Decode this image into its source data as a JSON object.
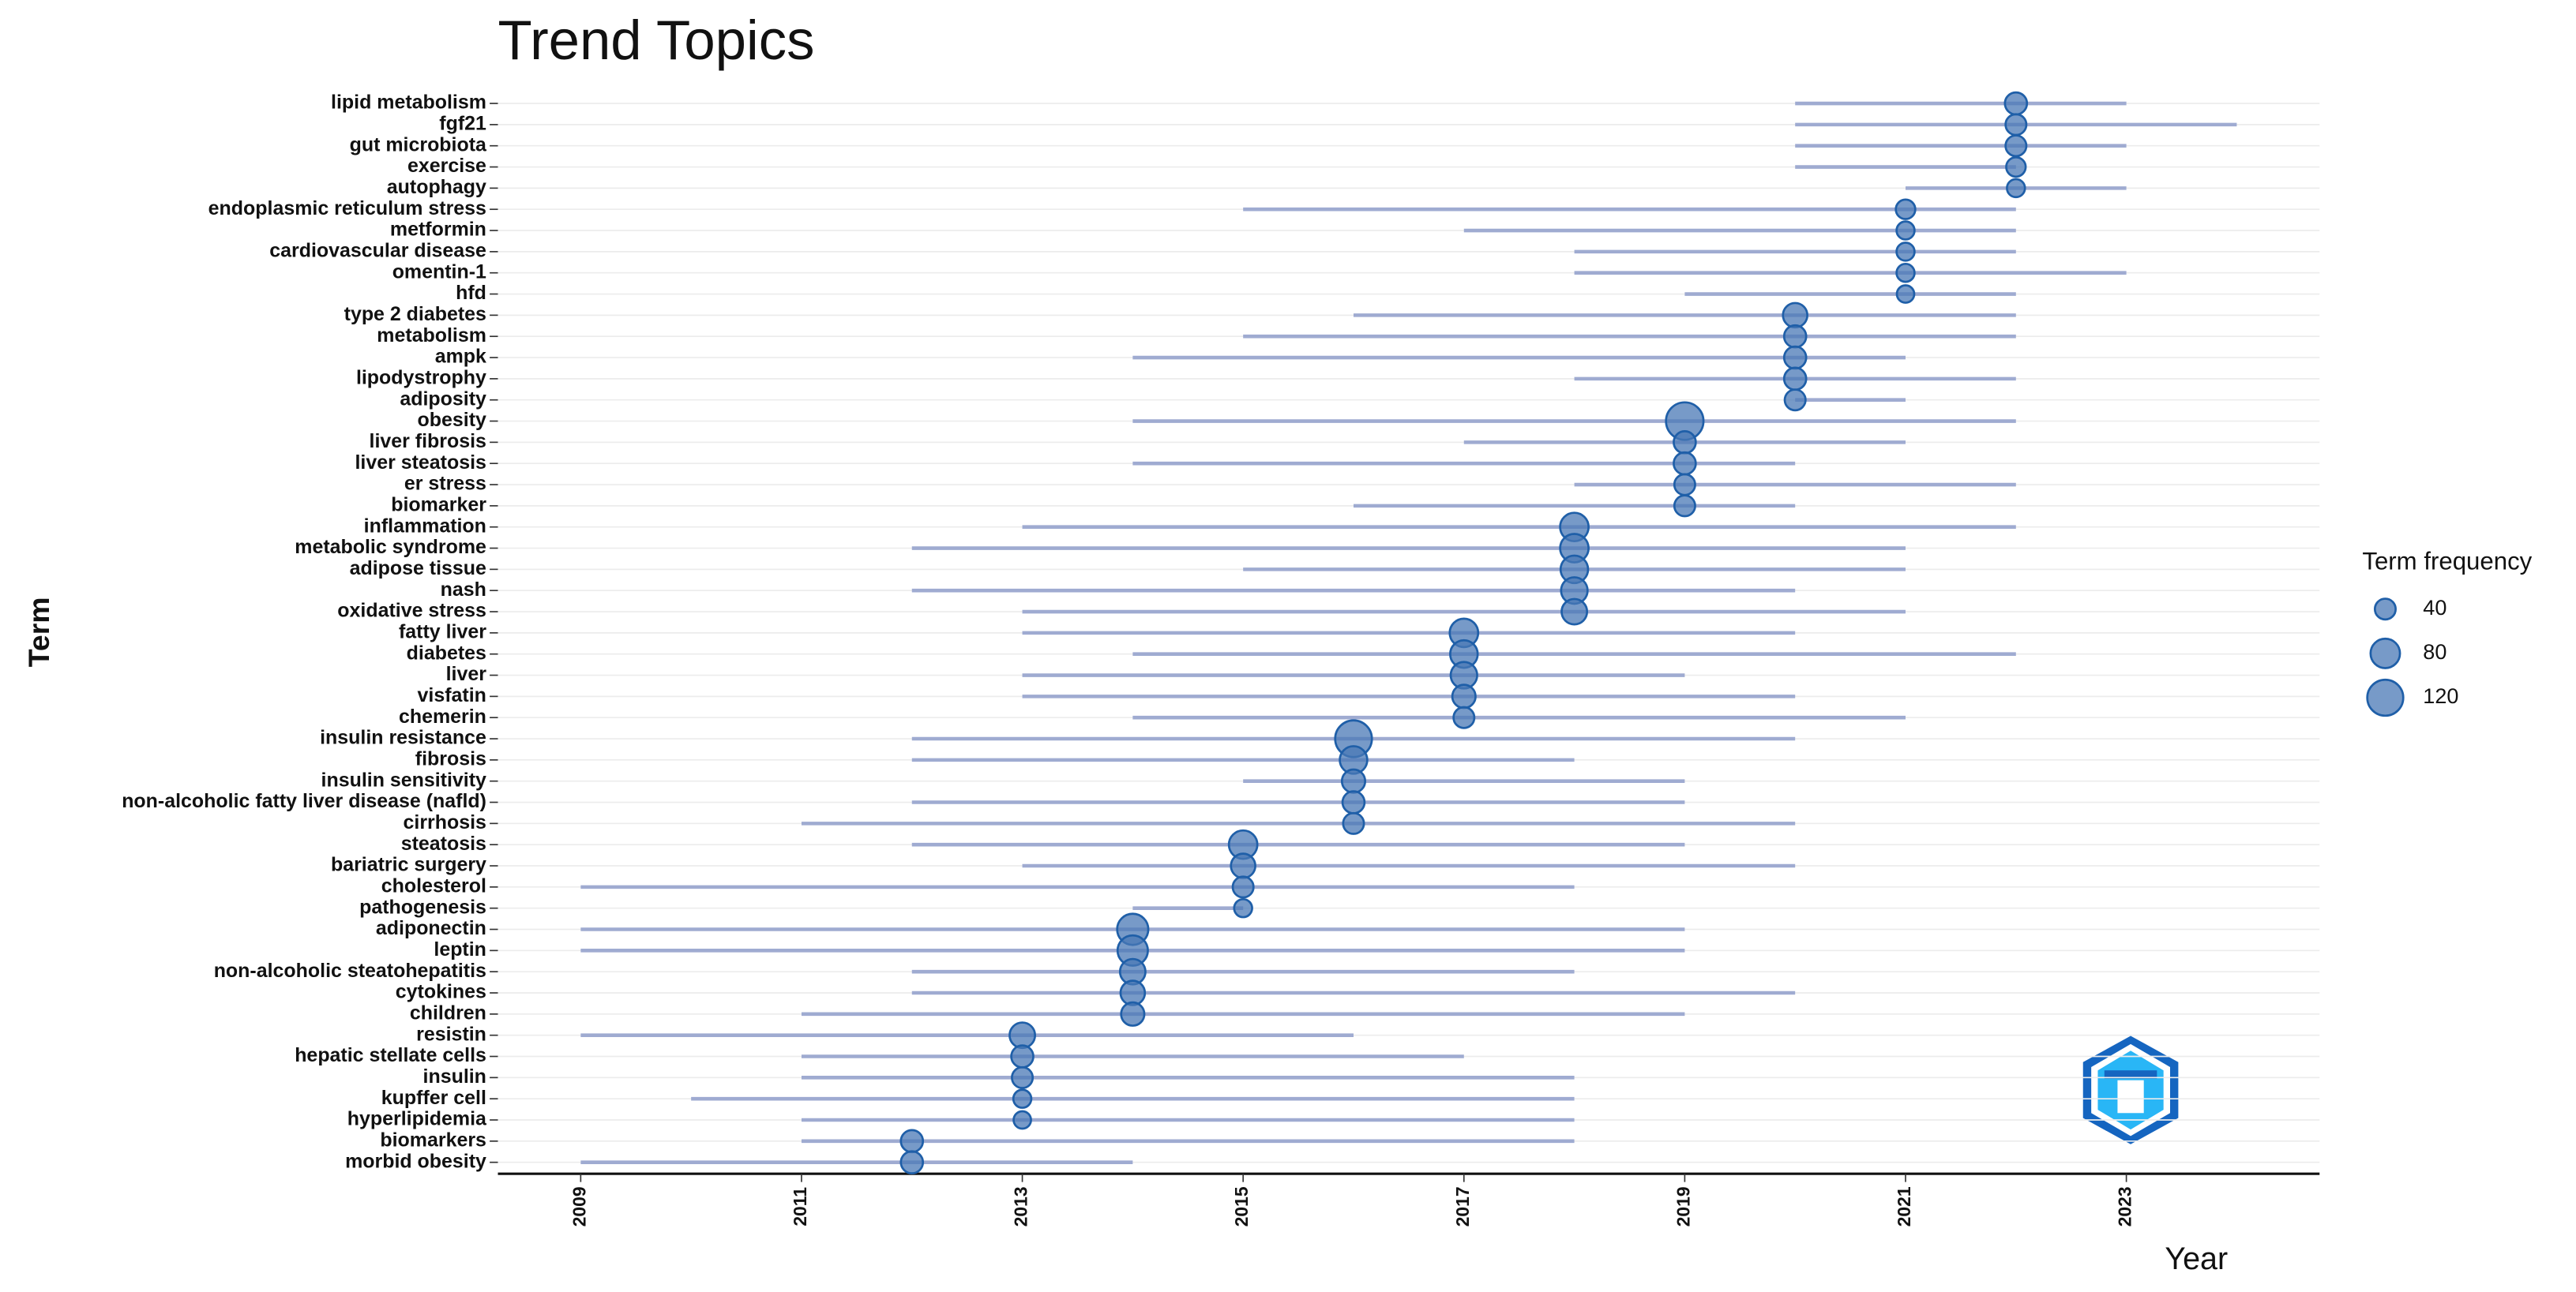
{
  "chart_data": {
    "type": "trend",
    "title": "Trend Topics",
    "x_label": "Year",
    "y_label": "Term",
    "categories": [
      "lipid metabolism",
      "fgf21",
      "gut microbiota",
      "exercise",
      "autophagy",
      "endoplasmic reticulum stress",
      "metformin",
      "cardiovascular disease",
      "omentin-1",
      "hfd",
      "type 2 diabetes",
      "metabolism",
      "ampk",
      "lipodystrophy",
      "adiposity",
      "obesity",
      "liver fibrosis",
      "liver steatosis",
      "er stress",
      "biomarker",
      "inflammation",
      "metabolic syndrome",
      "adipose tissue",
      "nash",
      "oxidative stress",
      "fatty liver",
      "diabetes",
      "liver",
      "visfatin",
      "chemerin",
      "insulin resistance",
      "fibrosis",
      "insulin sensitivity",
      "non-alcoholic fatty liver disease (nafld)",
      "cirrhosis",
      "steatosis",
      "bariatric surgery",
      "cholesterol",
      "pathogenesis",
      "adiponectin",
      "leptin",
      "non-alcoholic steatohepatitis",
      "cytokines",
      "children",
      "resistin",
      "hepatic stellate cells",
      "insulin",
      "kupffer cell",
      "hyperlipidemia",
      "biomarkers",
      "morbid obesity"
    ],
    "start": [
      2020,
      2020,
      2020,
      2020,
      2021,
      2015,
      2017,
      2018,
      2018,
      2019,
      2016,
      2015,
      2014,
      2018,
      2020,
      2014,
      2017,
      2014,
      2018,
      2016,
      2013,
      2012,
      2015,
      2012,
      2013,
      2013,
      2014,
      2013,
      2013,
      2014,
      2012,
      2012,
      2015,
      2012,
      2011,
      2012,
      2013,
      2009,
      2014,
      2009,
      2009,
      2012,
      2012,
      2011,
      2009,
      2011,
      2011,
      2010,
      2011,
      2011,
      2009
    ],
    "values": [
      2022,
      2022,
      2022,
      2022,
      2022,
      2021,
      2021,
      2021,
      2021,
      2021,
      2020,
      2020,
      2020,
      2020,
      2020,
      2019,
      2019,
      2019,
      2019,
      2019,
      2018,
      2018,
      2018,
      2018,
      2018,
      2017,
      2017,
      2017,
      2017,
      2017,
      2016,
      2016,
      2016,
      2016,
      2016,
      2015,
      2015,
      2015,
      2015,
      2014,
      2014,
      2014,
      2014,
      2014,
      2013,
      2013,
      2013,
      2013,
      2013,
      2012,
      2012
    ],
    "end": [
      2023,
      2024,
      2023,
      2022,
      2023,
      2022,
      2022,
      2022,
      2023,
      2022,
      2022,
      2022,
      2021,
      2022,
      2021,
      2022,
      2021,
      2020,
      2022,
      2020,
      2022,
      2021,
      2021,
      2020,
      2021,
      2020,
      2022,
      2019,
      2020,
      2021,
      2020,
      2018,
      2019,
      2019,
      2020,
      2019,
      2020,
      2018,
      2015,
      2019,
      2019,
      2018,
      2020,
      2019,
      2016,
      2017,
      2018,
      2018,
      2018,
      2018,
      2014
    ],
    "frequency": [
      45,
      40,
      40,
      35,
      30,
      35,
      30,
      30,
      30,
      28,
      55,
      45,
      45,
      45,
      40,
      130,
      45,
      45,
      40,
      40,
      75,
      75,
      70,
      65,
      60,
      75,
      70,
      65,
      50,
      40,
      125,
      70,
      50,
      45,
      40,
      75,
      55,
      40,
      30,
      90,
      85,
      60,
      55,
      50,
      60,
      45,
      40,
      30,
      28,
      45,
      45
    ],
    "size_legend": {
      "title": "Term frequency",
      "values": [
        40,
        80,
        120
      ]
    },
    "xlim": [
      2008.25,
      2024.75
    ],
    "xticks": [
      2009,
      2011,
      2013,
      2015,
      2017,
      2019,
      2021,
      2023
    ],
    "color": "#4a78b5",
    "line_color": "#9fabd1",
    "grid": true
  }
}
